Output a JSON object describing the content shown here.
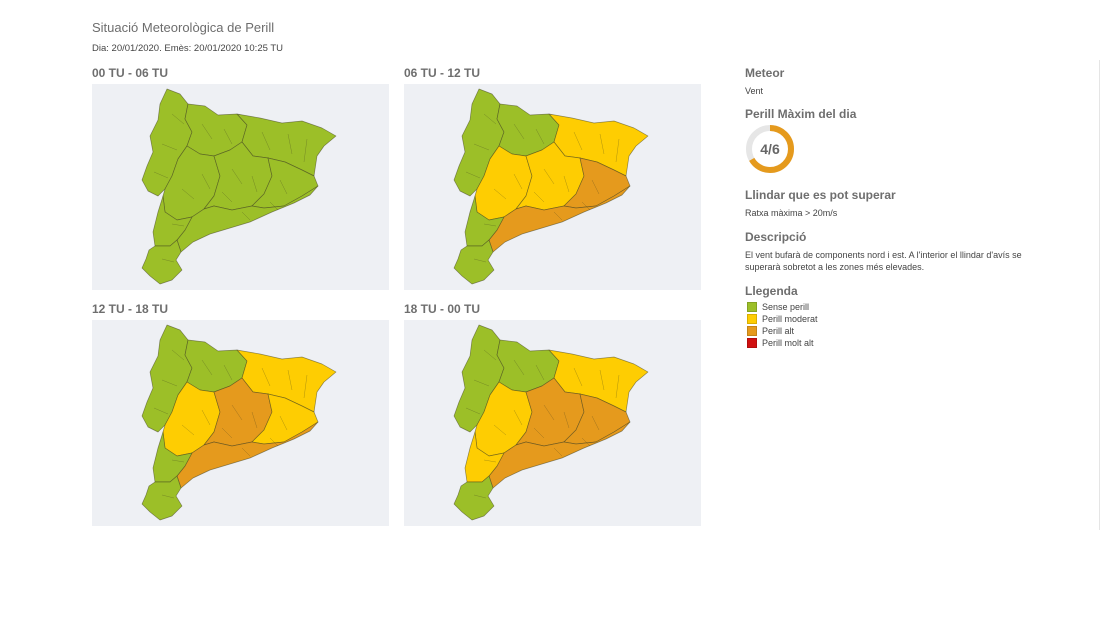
{
  "header": {
    "title": "Situació Meteorològica de Perill",
    "subtitle": "Dia: 20/01/2020. Emès: 20/01/2020 10:25 TU"
  },
  "colors": {
    "sense_perill": "#9cbf28",
    "perill_moderat": "#fecd02",
    "perill_alt": "#e59a1d",
    "perill_molt_alt": "#d01010",
    "map_background": "#eef0f4"
  },
  "panels": [
    {
      "label": "00 TU - 06 TU",
      "levels": {
        "nw": "sense_perill",
        "n": "sense_perill",
        "ne": "sense_perill",
        "w": "sense_perill",
        "c": "sense_perill",
        "e": "sense_perill",
        "coast": "sense_perill",
        "sw": "sense_perill",
        "delta": "sense_perill"
      }
    },
    {
      "label": "06 TU - 12 TU",
      "levels": {
        "nw": "sense_perill",
        "n": "sense_perill",
        "ne": "perill_moderat",
        "w": "perill_moderat",
        "c": "perill_moderat",
        "e": "perill_alt",
        "coast": "perill_alt",
        "sw": "sense_perill",
        "delta": "sense_perill"
      }
    },
    {
      "label": "12 TU - 18 TU",
      "levels": {
        "nw": "sense_perill",
        "n": "sense_perill",
        "ne": "perill_moderat",
        "w": "perill_moderat",
        "c": "perill_alt",
        "e": "perill_moderat",
        "coast": "perill_alt",
        "sw": "sense_perill",
        "delta": "sense_perill"
      }
    },
    {
      "label": "18 TU - 00 TU",
      "levels": {
        "nw": "sense_perill",
        "n": "sense_perill",
        "ne": "perill_moderat",
        "w": "perill_moderat",
        "c": "perill_alt",
        "e": "perill_alt",
        "coast": "perill_alt",
        "sw": "perill_moderat",
        "delta": "sense_perill"
      }
    }
  ],
  "side": {
    "meteor_heading": "Meteor",
    "meteor_value": "Vent",
    "max_heading": "Perill Màxim del dia",
    "max_value": "4/6",
    "max_fraction": 0.6667,
    "gauge_color": "#e59a1d",
    "threshold_heading": "Llindar que es pot superar",
    "threshold_value": "Ratxa màxima > 20m/s",
    "description_heading": "Descripció",
    "description_text": "El vent bufarà de components nord i est. A l'interior el llindar d'avís se superarà sobretot a les zones més elevades.",
    "legend_heading": "Llegenda",
    "legend": [
      {
        "label": "Sense perill",
        "color": "#9cbf28"
      },
      {
        "label": "Perill moderat",
        "color": "#fecd02"
      },
      {
        "label": "Perill alt",
        "color": "#e59a1d"
      },
      {
        "label": "Perill molt alt",
        "color": "#d01010"
      }
    ]
  }
}
